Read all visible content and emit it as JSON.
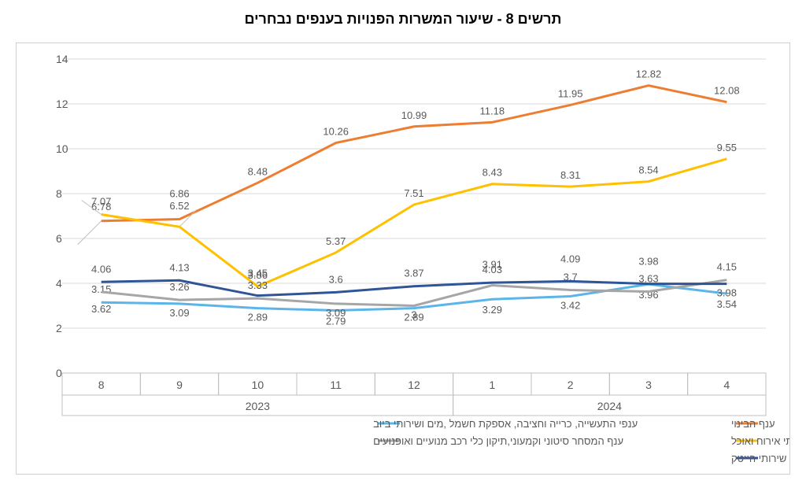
{
  "title": "תרשים 8 - שיעור המשרות הפנויות בענפים נבחרים",
  "chart": {
    "type": "line",
    "background_color": "#ffffff",
    "grid_color": "#d9d9d9",
    "axis_color": "#bfbfbf",
    "title_fontsize": 18,
    "label_fontsize": 14,
    "tick_fontsize": 14,
    "ylim": [
      0,
      14
    ],
    "ytick_step": 2,
    "x_categories": [
      "8",
      "9",
      "10",
      "11",
      "12",
      "1",
      "2",
      "3",
      "4"
    ],
    "year_groups": [
      {
        "label": "2023",
        "cols": 5
      },
      {
        "label": "2024",
        "cols": 4
      }
    ],
    "series": [
      {
        "name": "ענף הבינוי",
        "color": "#ed7d31",
        "values": [
          6.78,
          6.86,
          8.48,
          10.26,
          10.99,
          11.18,
          11.95,
          12.82,
          12.08
        ],
        "label_dy": [
          -14,
          -28,
          -10,
          -10,
          -10,
          -10,
          -10,
          -10,
          -10
        ]
      },
      {
        "name": "ענפי התעשייה, כרייה וחציבה, אספקת חשמל ,מים ושירותי ביוב",
        "color": "#5bb5e8",
        "values": [
          3.15,
          3.09,
          2.89,
          2.79,
          2.89,
          3.29,
          3.42,
          3.96,
          3.54
        ],
        "label_dy": [
          -12,
          16,
          16,
          18,
          16,
          18,
          16,
          18,
          18
        ]
      },
      {
        "name": "ענף שירותי אירוח ואוכל",
        "color": "#ffc000",
        "values": [
          7.07,
          6.52,
          3.86,
          5.37,
          7.51,
          8.43,
          8.31,
          8.54,
          9.55
        ],
        "label_dy": [
          -12,
          -22,
          -10,
          -10,
          -10,
          -10,
          -10,
          -10,
          -10
        ]
      },
      {
        "name": "ענף המסחר סיטוני וקמעוני,תיקון כלי רכב מנועיים ואופנועים",
        "color": "#a6a6a6",
        "values": [
          3.62,
          3.26,
          3.33,
          3.09,
          3.0,
          3.91,
          3.7,
          3.63,
          4.15
        ],
        "label_dy": [
          26,
          -12,
          -12,
          16,
          16,
          -22,
          -12,
          -12,
          -12
        ]
      },
      {
        "name": "ענף שירותי הייטק",
        "color": "#2f5597",
        "values": [
          4.06,
          4.13,
          3.45,
          3.6,
          3.87,
          4.03,
          4.09,
          3.98,
          3.98
        ],
        "label_dy": [
          -12,
          -12,
          -24,
          -12,
          -12,
          -12,
          -24,
          -24,
          16
        ]
      }
    ],
    "legend_swatch_width": 28,
    "line_width": 3
  }
}
